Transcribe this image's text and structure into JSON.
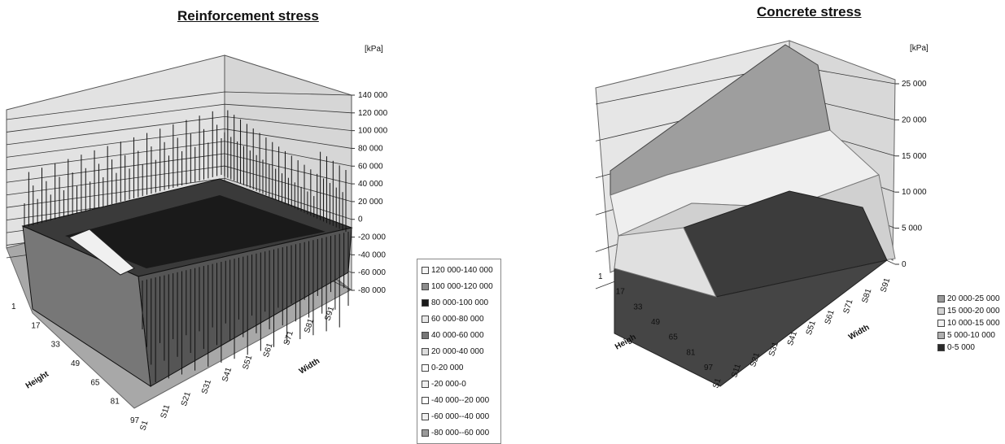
{
  "charts": [
    {
      "title": "Reinforcement stress",
      "unit": "[kPa]",
      "axis_title_depth": "Height",
      "axis_title_width": "Width",
      "legend": [
        {
          "label": "120 000-140 000",
          "color": "#f4f4f4"
        },
        {
          "label": "100 000-120 000",
          "color": "#8c8c8c"
        },
        {
          "label": "80 000-100 000",
          "color": "#1a1a1a"
        },
        {
          "label": "60 000-80 000",
          "color": "#e8e8e8"
        },
        {
          "label": "40 000-60 000",
          "color": "#777777"
        },
        {
          "label": "20 000-40 000",
          "color": "#dcdcdc"
        },
        {
          "label": "0-20 000",
          "color": "#fafafa"
        },
        {
          "label": "-20 000-0",
          "color": "#eeeeee"
        },
        {
          "label": "-40 000--20 000",
          "color": "#ffffff"
        },
        {
          "label": "-60 000--40 000",
          "color": "#f0f0f0"
        },
        {
          "label": "-80 000--60 000",
          "color": "#9a9a9a"
        }
      ]
    },
    {
      "title": "Concrete stress",
      "unit": "[kPa]",
      "axis_title_depth": "Heigh",
      "axis_title_width": "Width",
      "legend": [
        {
          "label": "20 000-25 000",
          "color": "#9a9a9a"
        },
        {
          "label": "15 000-20 000",
          "color": "#d4d4d4"
        },
        {
          "label": "10 000-15 000",
          "color": "#f2f2f2"
        },
        {
          "label": "5 000-10 000",
          "color": "#b0b0b0"
        },
        {
          "label": "0-5 000",
          "color": "#2a2a2a"
        }
      ]
    }
  ],
  "chart_data": [
    {
      "type": "surface",
      "title": "Reinforcement stress",
      "unit": "[kPa]",
      "z_ticks": [
        "140 000",
        "120 000",
        "100 000",
        "80 000",
        "60 000",
        "40 000",
        "20 000",
        "0",
        "-20 000",
        "-40 000",
        "-60 000",
        "-80 000"
      ],
      "zlim": [
        -80000,
        140000
      ],
      "depth_ticks": [
        "1",
        "17",
        "33",
        "49",
        "65",
        "81",
        "97"
      ],
      "width_ticks": [
        "S1",
        "S11",
        "S21",
        "S31",
        "S41",
        "S51",
        "S61",
        "S71",
        "S81",
        "S91"
      ],
      "xlabel": "Width",
      "ylabel": "Height"
    },
    {
      "type": "surface",
      "title": "Concrete stress",
      "unit": "[kPa]",
      "z_ticks": [
        "25 000",
        "20 000",
        "15 000",
        "10 000",
        "5 000",
        "0"
      ],
      "zlim": [
        0,
        25000
      ],
      "depth_ticks": [
        "1",
        "17",
        "33",
        "49",
        "65",
        "81",
        "97"
      ],
      "width_ticks": [
        "S1",
        "S11",
        "S21",
        "S31",
        "S41",
        "S51",
        "S61",
        "S71",
        "S81",
        "S91"
      ],
      "xlabel": "Width",
      "ylabel": "Heigh"
    }
  ]
}
